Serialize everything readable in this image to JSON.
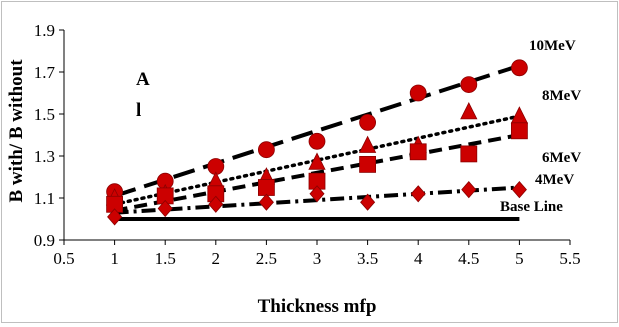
{
  "chart_data": {
    "type": "scatter",
    "title": "",
    "panel_label": [
      "A",
      "l"
    ],
    "xlabel": "Thickness mfp",
    "ylabel": "B with/ B without",
    "xlim": [
      0.5,
      5.5
    ],
    "ylim": [
      0.9,
      1.9
    ],
    "xticks": [
      "0.5",
      "1",
      "1.5",
      "2",
      "2.5",
      "3",
      "3.5",
      "4",
      "4.5",
      "5",
      "5.5"
    ],
    "yticks": [
      "0.9",
      "1.1",
      "1.3",
      "1.5",
      "1.7",
      "1.9"
    ],
    "grid": false,
    "legend": "none",
    "x": [
      1,
      1.5,
      2,
      2.5,
      3,
      3.5,
      4,
      4.5,
      5
    ],
    "series": [
      {
        "name": "10MeV",
        "marker": "circle",
        "color": "#cc0000",
        "values": [
          1.13,
          1.18,
          1.25,
          1.33,
          1.37,
          1.46,
          1.6,
          1.64,
          1.72
        ],
        "trend": {
          "style": "long-dash",
          "from": [
            1,
            1.11
          ],
          "to": [
            5,
            1.73
          ]
        }
      },
      {
        "name": "8MeV",
        "marker": "triangle",
        "color": "#cc0000",
        "values": [
          1.1,
          1.12,
          1.18,
          1.2,
          1.27,
          1.35,
          1.35,
          1.51,
          1.49
        ],
        "trend": {
          "style": "dotted",
          "from": [
            1,
            1.07
          ],
          "to": [
            5,
            1.49
          ]
        }
      },
      {
        "name": "6MeV",
        "marker": "square",
        "color": "#cc0000",
        "values": [
          1.07,
          1.11,
          1.12,
          1.15,
          1.18,
          1.26,
          1.32,
          1.31,
          1.42
        ],
        "trend": {
          "style": "dash",
          "from": [
            1,
            1.04
          ],
          "to": [
            5,
            1.4
          ]
        }
      },
      {
        "name": "4MeV",
        "marker": "diamond",
        "color": "#cc0000",
        "values": [
          1.01,
          1.05,
          1.07,
          1.08,
          1.12,
          1.08,
          1.12,
          1.14,
          1.14
        ],
        "trend": {
          "style": "dash-dot",
          "from": [
            1,
            1.03
          ],
          "to": [
            5,
            1.15
          ]
        }
      },
      {
        "name": "Base Line",
        "marker": "none",
        "color": "#000000",
        "values": [
          1,
          1,
          1,
          1,
          1,
          1,
          1,
          1,
          1
        ],
        "trend": {
          "style": "solid",
          "from": [
            1,
            1.0
          ],
          "to": [
            5,
            1.0
          ]
        }
      }
    ]
  }
}
